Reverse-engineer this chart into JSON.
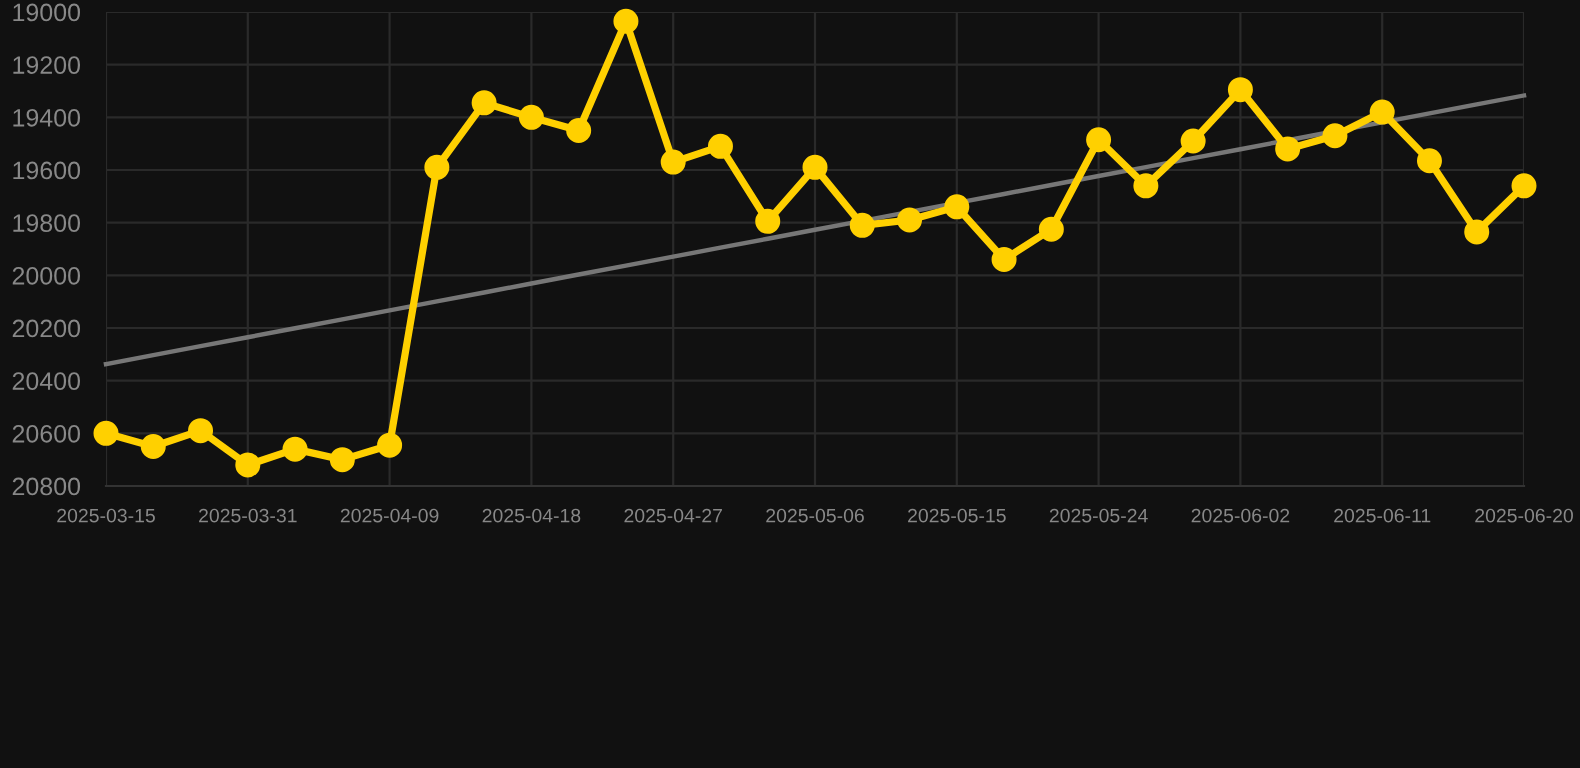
{
  "chart_data": {
    "type": "line",
    "categories": [
      "2025-03-15",
      null,
      null,
      "2025-03-31",
      null,
      null,
      "2025-04-09",
      null,
      null,
      "2025-04-18",
      null,
      null,
      "2025-04-27",
      null,
      null,
      "2025-05-06",
      null,
      null,
      "2025-05-15",
      null,
      null,
      "2025-05-24",
      null,
      null,
      "2025-06-02",
      null,
      null,
      "2025-06-11",
      null,
      null,
      "2025-06-20"
    ],
    "series": [
      {
        "color": "#ffd000",
        "marker": "circle",
        "values": [
          20600,
          20650,
          20590,
          20720,
          20660,
          20700,
          20645,
          19590,
          19345,
          19400,
          19450,
          19035,
          19570,
          19510,
          19795,
          19590,
          19810,
          19790,
          19740,
          19940,
          19825,
          19485,
          19660,
          19490,
          19295,
          19520,
          19470,
          19380,
          19565,
          19835,
          19660
        ]
      },
      {
        "type": "line",
        "color": "#777777",
        "marker": "none",
        "values": [
          20337,
          20303,
          20269,
          20235,
          20201,
          20167,
          20133,
          20099,
          20065,
          20031,
          19997,
          19963,
          19929,
          19895,
          19861,
          19827,
          19793,
          19759,
          19725,
          19691,
          19657,
          19623,
          19589,
          19555,
          19521,
          19487,
          19453,
          19419,
          19385,
          19351,
          19317
        ]
      }
    ],
    "ylim": [
      20800,
      19000
    ],
    "yticks": [
      19000,
      19200,
      19400,
      19600,
      19800,
      20000,
      20200,
      20400,
      20600,
      20800
    ],
    "grid": true,
    "line_style": "solid"
  }
}
